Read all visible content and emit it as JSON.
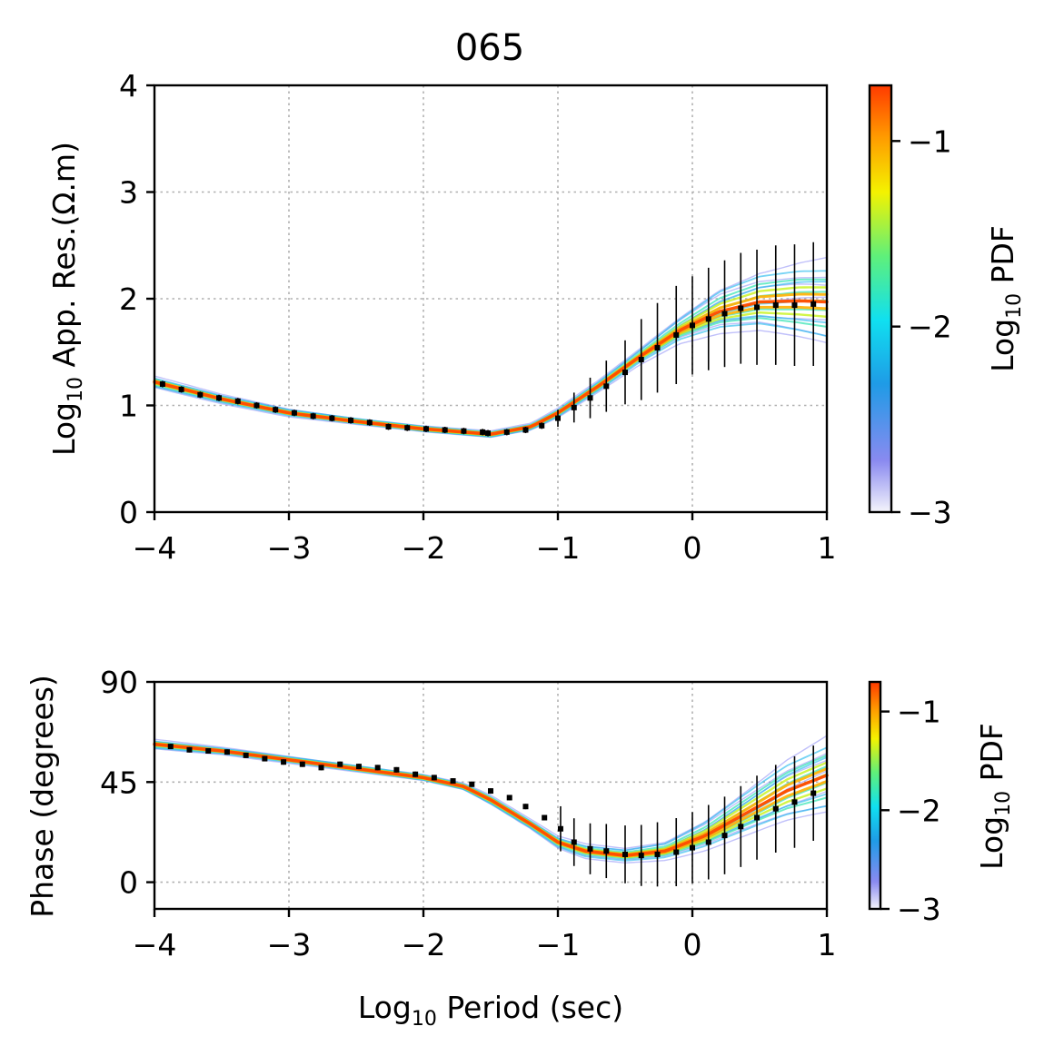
{
  "figure": {
    "title": "065"
  },
  "chart_data": [
    {
      "type": "line",
      "panel": "apparent-resistivity",
      "title": "065",
      "xlabel": {
        "base": "Log",
        "sub": "10",
        "rest": " Period (sec)"
      },
      "ylabel": {
        "base": "Log",
        "sub": "10",
        "rest": " App. Res.(Ω.m)"
      },
      "xlim": [
        -4,
        1
      ],
      "ylim": [
        0,
        4
      ],
      "x_ticks": [
        -4,
        -3,
        -2,
        -1,
        0,
        1
      ],
      "x_tick_labels": [
        "−4",
        "−3",
        "−2",
        "−1",
        "0",
        "1"
      ],
      "y_ticks": [
        0,
        1,
        2,
        3,
        4
      ],
      "y_tick_labels": [
        "0",
        "1",
        "2",
        "3",
        "4"
      ],
      "grid": true,
      "model_pdf_band": {
        "x": [
          -4.0,
          -3.5,
          -3.0,
          -2.5,
          -2.0,
          -1.5,
          -1.2,
          -1.0,
          -0.7,
          -0.4,
          -0.1,
          0.2,
          0.5,
          0.8,
          1.0
        ],
        "center": [
          1.22,
          1.06,
          0.93,
          0.85,
          0.78,
          0.73,
          0.8,
          0.93,
          1.18,
          1.45,
          1.7,
          1.88,
          1.97,
          1.98,
          1.97
        ],
        "half_width": [
          0.05,
          0.04,
          0.035,
          0.03,
          0.03,
          0.03,
          0.03,
          0.04,
          0.05,
          0.07,
          0.12,
          0.22,
          0.3,
          0.38,
          0.42
        ]
      },
      "observed": {
        "x": [
          -3.94,
          -3.8,
          -3.66,
          -3.52,
          -3.38,
          -3.24,
          -3.1,
          -2.96,
          -2.82,
          -2.68,
          -2.54,
          -2.4,
          -2.26,
          -2.12,
          -1.98,
          -1.84,
          -1.7,
          -1.56,
          -1.52,
          -1.38,
          -1.24,
          -1.12,
          -1.0,
          -0.88,
          -0.76,
          -0.64,
          -0.5,
          -0.38,
          -0.26,
          -0.12,
          0.0,
          0.12,
          0.24,
          0.36,
          0.48,
          0.62,
          0.76,
          0.9
        ],
        "y": [
          1.2,
          1.15,
          1.1,
          1.07,
          1.04,
          1.0,
          0.96,
          0.93,
          0.9,
          0.88,
          0.86,
          0.84,
          0.8,
          0.79,
          0.78,
          0.77,
          0.76,
          0.75,
          0.74,
          0.75,
          0.77,
          0.81,
          0.88,
          0.98,
          1.07,
          1.18,
          1.31,
          1.43,
          1.54,
          1.66,
          1.75,
          1.81,
          1.86,
          1.91,
          1.92,
          1.94,
          1.94,
          1.95
        ],
        "err": [
          0.03,
          0.03,
          0.03,
          0.03,
          0.03,
          0.03,
          0.03,
          0.03,
          0.03,
          0.03,
          0.03,
          0.03,
          0.03,
          0.03,
          0.03,
          0.03,
          0.03,
          0.03,
          0.03,
          0.03,
          0.03,
          0.03,
          0.08,
          0.14,
          0.19,
          0.24,
          0.3,
          0.38,
          0.42,
          0.46,
          0.46,
          0.48,
          0.5,
          0.52,
          0.54,
          0.56,
          0.57,
          0.58
        ]
      },
      "colorbar": {
        "label": {
          "base": "Log",
          "sub": "10",
          "rest": " PDF"
        },
        "range": [
          -3,
          -0.7
        ],
        "ticks": [
          -1,
          -2,
          -3
        ],
        "tick_labels": [
          "−1",
          "−2",
          "−3"
        ]
      }
    },
    {
      "type": "line",
      "panel": "phase",
      "xlabel": {
        "base": "Log",
        "sub": "10",
        "rest": " Period (sec)"
      },
      "ylabel": "Phase (degrees)",
      "xlim": [
        -4,
        1
      ],
      "ylim": [
        -12,
        90
      ],
      "x_ticks": [
        -4,
        -3,
        -2,
        -1,
        0,
        1
      ],
      "x_tick_labels": [
        "−4",
        "−3",
        "−2",
        "−1",
        "0",
        "1"
      ],
      "y_ticks": [
        0,
        45,
        90
      ],
      "y_tick_labels": [
        "0",
        "45",
        "90"
      ],
      "grid": true,
      "model_pdf_band": {
        "x": [
          -4.0,
          -3.5,
          -3.0,
          -2.5,
          -2.0,
          -1.7,
          -1.5,
          -1.2,
          -1.0,
          -0.8,
          -0.5,
          -0.2,
          0.1,
          0.4,
          0.7,
          1.0
        ],
        "center": [
          62,
          59,
          55,
          51,
          47,
          43,
          37,
          26,
          18,
          14,
          12,
          14,
          21,
          31,
          41,
          48
        ],
        "half_width": [
          2,
          1.5,
          1.5,
          1.5,
          1.5,
          1.5,
          2,
          2,
          2.5,
          3,
          3,
          4,
          7,
          11,
          15,
          18
        ]
      },
      "observed": {
        "x": [
          -3.88,
          -3.74,
          -3.6,
          -3.46,
          -3.32,
          -3.18,
          -3.04,
          -2.9,
          -2.76,
          -2.62,
          -2.48,
          -2.34,
          -2.2,
          -2.06,
          -1.92,
          -1.78,
          -1.64,
          -1.5,
          -1.36,
          -1.24,
          -1.1,
          -0.98,
          -0.88,
          -0.76,
          -0.64,
          -0.5,
          -0.38,
          -0.26,
          -0.12,
          0.0,
          0.12,
          0.24,
          0.36,
          0.48,
          0.62,
          0.76,
          0.9
        ],
        "y": [
          61,
          59.5,
          59,
          58.5,
          57,
          55.5,
          54,
          53,
          51.5,
          53,
          52,
          51.5,
          50.5,
          48.5,
          47,
          45.5,
          44,
          41,
          38,
          34,
          29,
          24,
          18,
          15,
          14,
          12.5,
          12,
          12.5,
          13.5,
          15.5,
          18,
          21,
          25,
          29,
          33,
          36,
          40
        ]
      },
      "colorbar": {
        "label": {
          "base": "Log",
          "sub": "10",
          "rest": " PDF"
        },
        "range": [
          -3,
          -0.7
        ],
        "ticks": [
          -1,
          -2,
          -3
        ],
        "tick_labels": [
          "−1",
          "−2",
          "−3"
        ]
      }
    }
  ]
}
